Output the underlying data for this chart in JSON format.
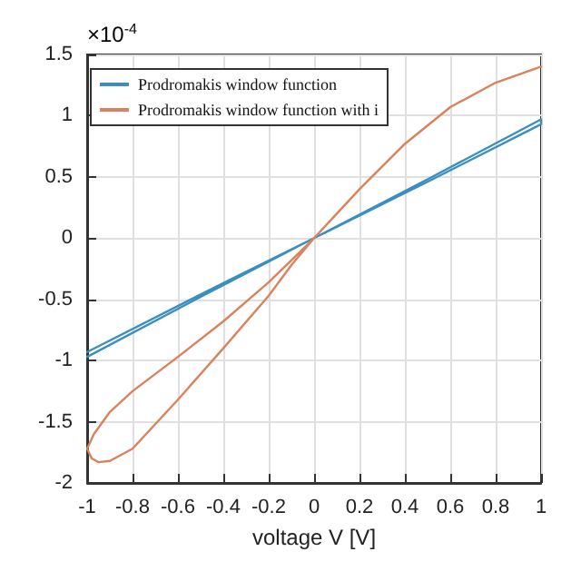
{
  "chart_data": {
    "type": "line",
    "xlabel": "voltage V [V]",
    "annotations": [
      "×10$^{-4}$"
    ],
    "xlim": [
      -1,
      1
    ],
    "xticks": [
      -1,
      -0.8,
      -0.6,
      -0.4,
      -0.2,
      0,
      0.2,
      0.4,
      0.6,
      0.8,
      1
    ],
    "ylim": [
      -2,
      1.5
    ],
    "yticks": [
      -2,
      -1.5,
      -1,
      -0.5,
      0,
      0.5,
      1,
      1.5
    ],
    "grid": true,
    "legend": "top left",
    "line_style": "solid",
    "marker": "none",
    "series": [
      {
        "name": "Prodromakis window function",
        "color": "#3a8fc0",
        "x": [
          -1,
          -0.5,
          0,
          0.5,
          1,
          1,
          0.5,
          0,
          -0.5,
          -1
        ],
        "values": [
          -0.93,
          -0.46,
          0,
          0.48,
          0.97,
          0.93,
          0.46,
          0,
          -0.48,
          -0.97
        ]
      },
      {
        "name": "Prodromakis window function with i",
        "color": "#d9825b",
        "x": [
          1,
          0.8,
          0.6,
          0.4,
          0.2,
          0.1,
          0,
          -0.2,
          -0.4,
          -0.6,
          -0.8,
          -0.9,
          -0.97,
          -1,
          -0.98,
          -0.95,
          -0.9,
          -0.8,
          -0.6,
          -0.4,
          -0.2,
          -0.1,
          0
        ],
        "values": [
          1.4,
          1.27,
          1.07,
          0.77,
          0.4,
          0.2,
          0,
          -0.36,
          -0.68,
          -0.97,
          -1.25,
          -1.42,
          -1.6,
          -1.72,
          -1.8,
          -1.83,
          -1.82,
          -1.72,
          -1.32,
          -0.9,
          -0.47,
          -0.22,
          0
        ]
      }
    ]
  }
}
